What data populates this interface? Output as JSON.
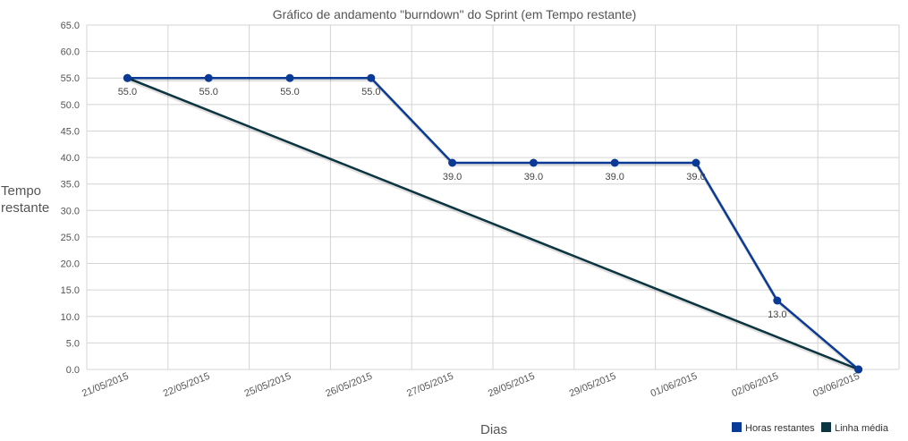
{
  "chart_data": {
    "type": "line",
    "title": "Gráfico de andamento \"burndown\" do Sprint (em Tempo restante)",
    "xlabel": "Dias",
    "ylabel_line1": "Tempo",
    "ylabel_line2": "restante",
    "categories": [
      "21/05/2015",
      "22/05/2015",
      "25/05/2015",
      "26/05/2015",
      "27/05/2015",
      "28/05/2015",
      "29/05/2015",
      "01/06/2015",
      "02/06/2015",
      "03/06/2015"
    ],
    "ylim": [
      0,
      65
    ],
    "ytick_step": 5,
    "grid": true,
    "legend_position": "bottom-right",
    "series": [
      {
        "name": "Horas restantes",
        "color": "#0a3a96",
        "x": [
          "21/05/2015",
          "22/05/2015",
          "25/05/2015",
          "26/05/2015",
          "27/05/2015",
          "28/05/2015",
          "29/05/2015",
          "01/06/2015",
          "02/06/2015",
          "03/06/2015"
        ],
        "values": [
          55,
          55,
          55,
          55,
          39,
          39,
          39,
          39,
          13,
          0
        ],
        "labels": [
          "55.0",
          "55.0",
          "55.0",
          "55.0",
          "39.0",
          "39.0",
          "39.0",
          "39.0",
          "13.0",
          ""
        ]
      },
      {
        "name": "Linha média",
        "color": "#0b3540",
        "x": [
          "21/05/2015",
          "03/06/2015"
        ],
        "values": [
          55,
          0
        ]
      }
    ]
  }
}
